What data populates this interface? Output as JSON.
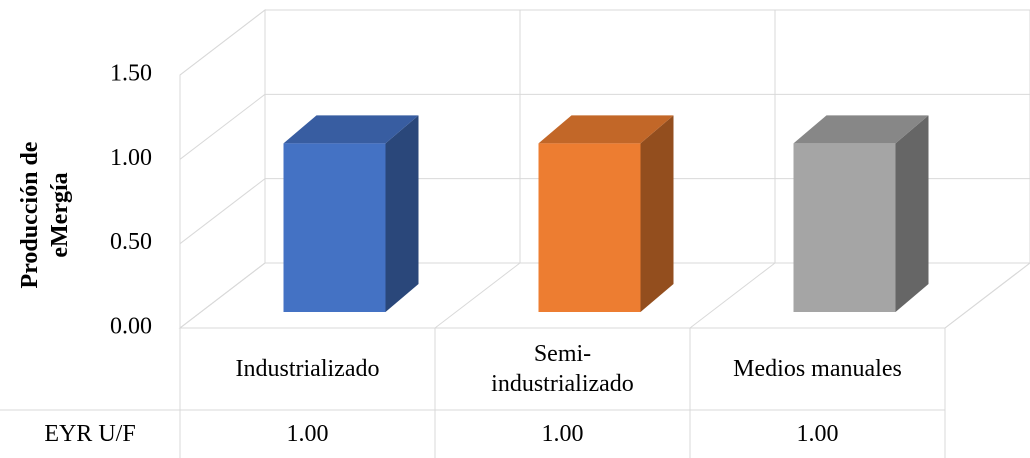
{
  "chart_data": {
    "type": "bar3d",
    "ylabel": "Producción de eMergía",
    "categories": [
      "Industrializado",
      "Semi-industrializado",
      "Medios manuales"
    ],
    "series": [
      {
        "name": "EYR U/F",
        "colors": [
          "#4472c4",
          "#ed7d31",
          "#a5a5a5"
        ],
        "values": [
          1.0,
          1.0,
          1.0
        ],
        "value_labels": [
          "1.00",
          "1.00",
          "1.00"
        ]
      }
    ],
    "ylim": [
      0,
      1.5
    ],
    "yticks": [
      {
        "value": 0,
        "label": "0.00"
      },
      {
        "value": 0.5,
        "label": "0.50"
      },
      {
        "value": 1.0,
        "label": "1.00"
      },
      {
        "value": 1.5,
        "label": "1.50"
      }
    ],
    "grid": true,
    "data_table": true
  }
}
